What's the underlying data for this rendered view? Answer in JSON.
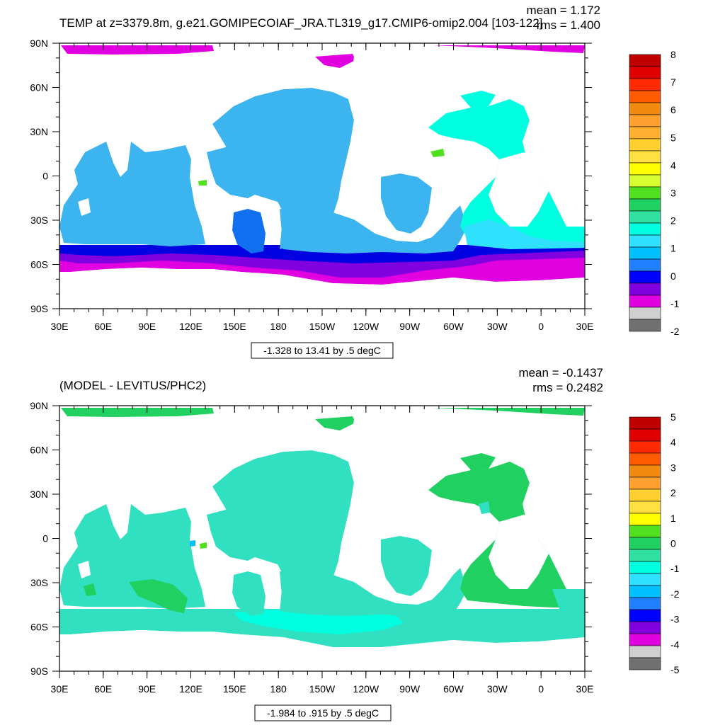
{
  "panels": [
    {
      "title": "TEMP at z=3379.8m, g.e21.GOMIPECOIAF_JRA.TL319_g17.CMIP6-omip2.004 [103-122]",
      "mean_text": "mean = 1.172",
      "rms_text": "rms = 1.400",
      "range_text": "-1.328 to 13.41 by .5 degC",
      "colorbar_labels": [
        "8",
        "7",
        "6",
        "5",
        "4",
        "3",
        "2",
        "1",
        "0",
        "-1",
        "-2"
      ],
      "colorbar_colors": [
        "#c00000",
        "#e00000",
        "#ff2a00",
        "#ff5a00",
        "#f08a10",
        "#ffa030",
        "#ffb030",
        "#ffd030",
        "#ffe040",
        "#ffff00",
        "#d8ff30",
        "#50e020",
        "#20d060",
        "#30e0a0",
        "#00ffe0",
        "#30e0ff",
        "#00c0ff",
        "#2080ff",
        "#0000ff",
        "#8000e0",
        "#e000e0",
        "#d0d0d0",
        "#707070"
      ]
    },
    {
      "title": "(MODEL - LEVITUS/PHC2)",
      "mean_text": "mean = -0.1437",
      "rms_text": "rms = 0.2482",
      "range_text": "-1.984 to .915 by .5 degC",
      "colorbar_labels": [
        "5",
        "4",
        "3",
        "2",
        "1",
        "0",
        "-1",
        "-2",
        "-3",
        "-4",
        "-5"
      ],
      "colorbar_colors": [
        "#c00000",
        "#e00000",
        "#ff2a00",
        "#ff5a00",
        "#f08a10",
        "#ffa030",
        "#ffd030",
        "#ffe040",
        "#ffff00",
        "#50e020",
        "#20d060",
        "#30e0a0",
        "#00ffe0",
        "#30e0ff",
        "#00c0ff",
        "#2080ff",
        "#0000ff",
        "#8000e0",
        "#e000e0",
        "#d0d0d0",
        "#707070"
      ]
    }
  ],
  "axes": {
    "lat_labels": [
      "90N",
      "60N",
      "30N",
      "0",
      "30S",
      "60S",
      "90S"
    ],
    "lon_labels": [
      "30E",
      "60E",
      "90E",
      "120E",
      "150E",
      "180",
      "150W",
      "120W",
      "90W",
      "60W",
      "30W",
      "0",
      "30E"
    ]
  },
  "colors": {
    "top_main_fill": "#3cb4f0",
    "top_cold": "#1070f0",
    "top_deep": "#0000e0",
    "top_violet": "#8000e0",
    "top_magenta": "#e000e0",
    "top_atlantic": "#00ffe0",
    "bottom_main_fill": "#30e0c0",
    "bottom_green": "#20d060",
    "bottom_cyan": "#00ffe0"
  }
}
